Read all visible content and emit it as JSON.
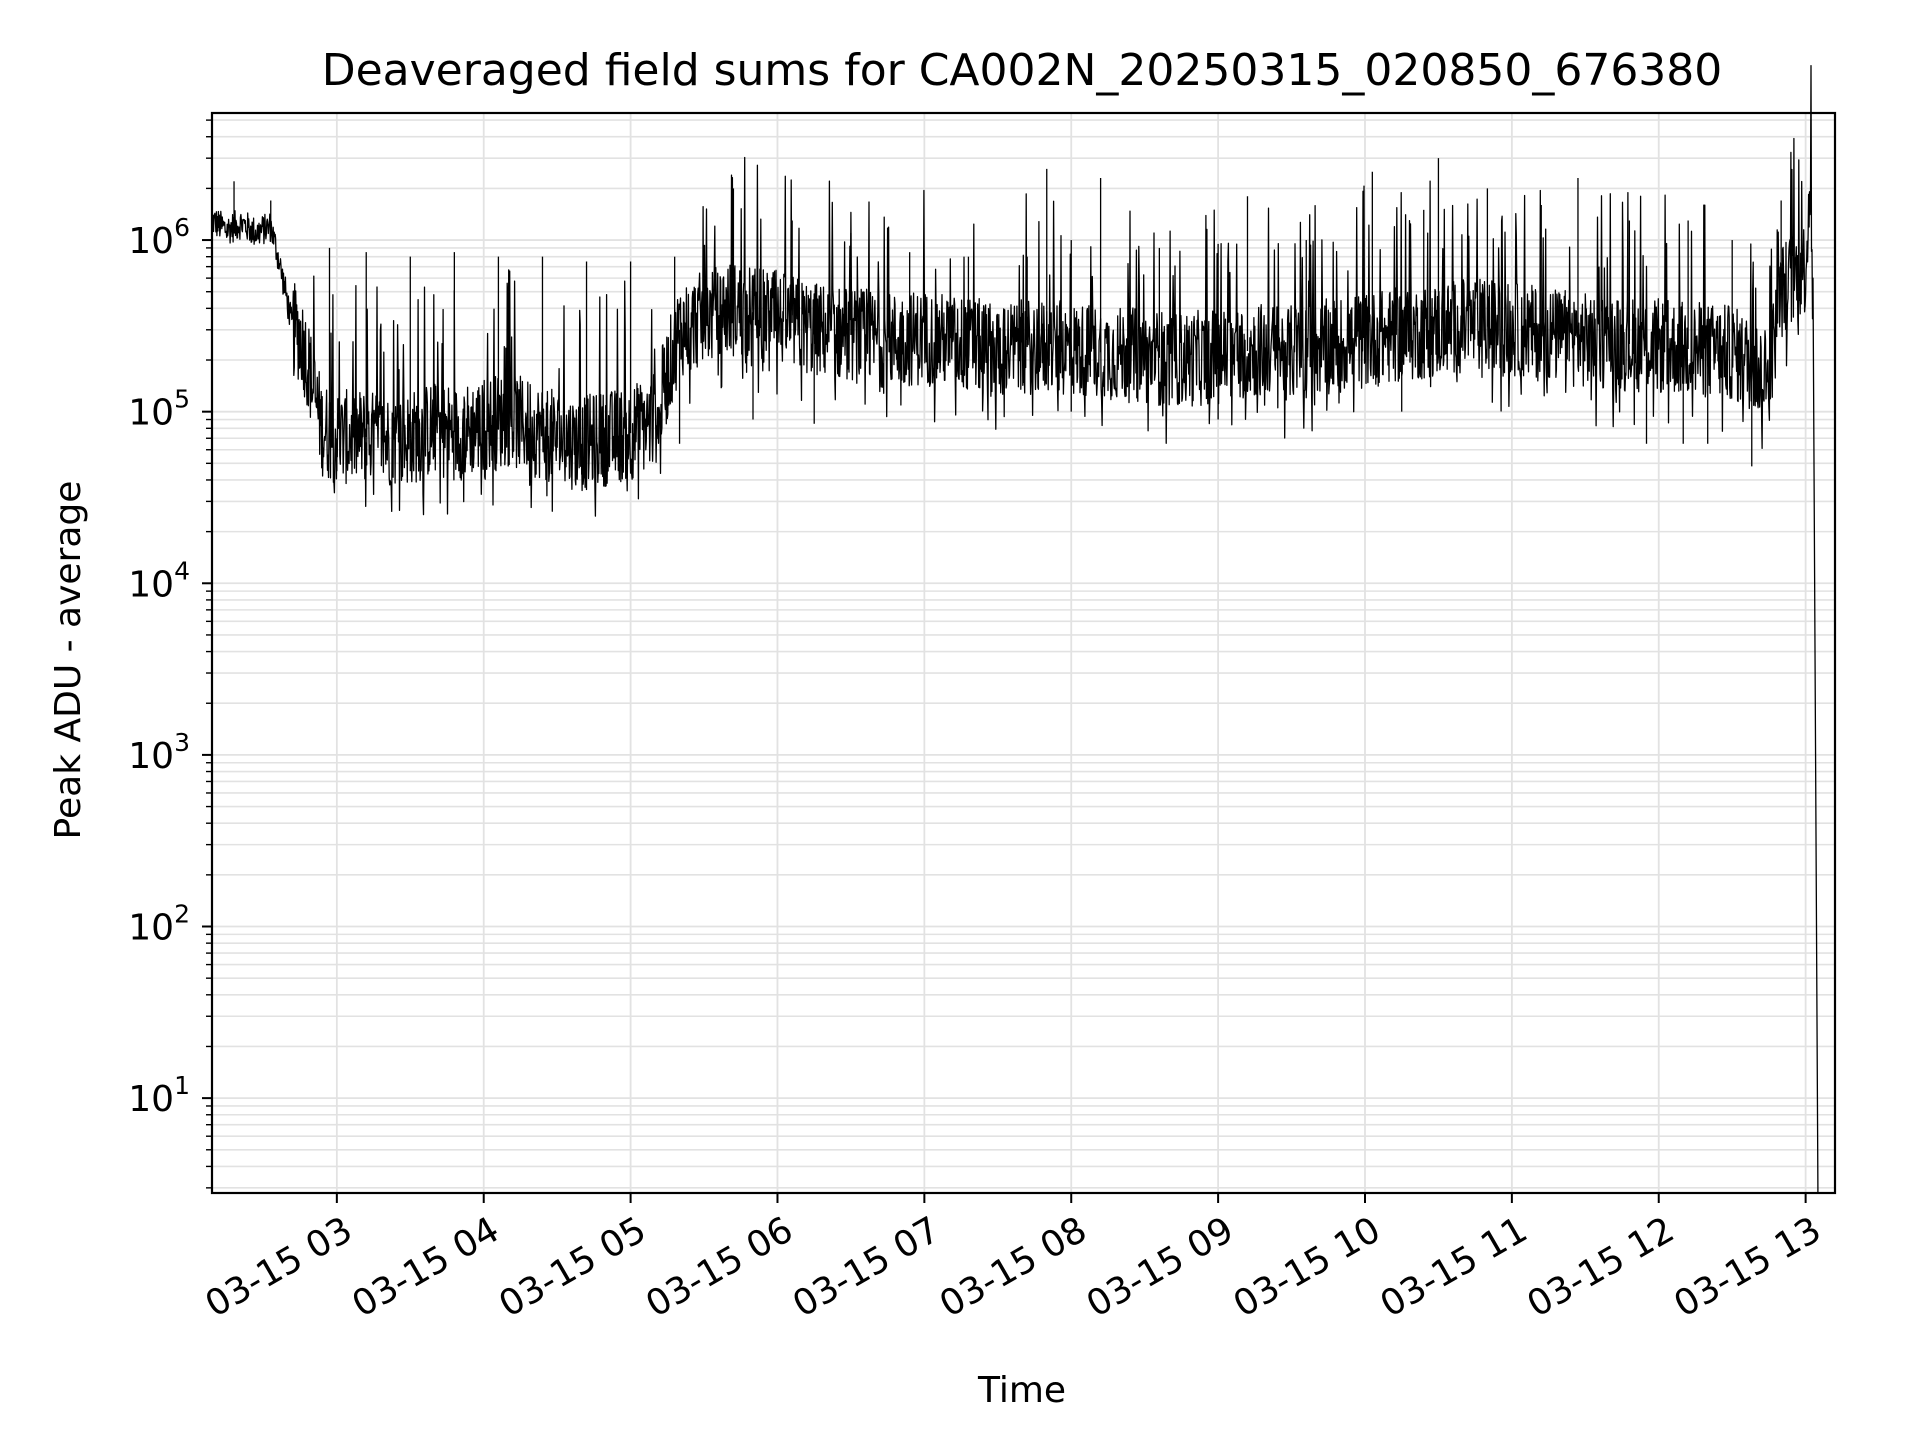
{
  "chart_data": {
    "type": "line",
    "title": "Deaveraged field sums for CA002N_20250315_020850_676380",
    "xlabel": "Time",
    "ylabel": "Peak ADU - average",
    "y_scale": "log",
    "grid": true,
    "legend": "none",
    "line_color": "#000000",
    "grid_color": "#e2e2e2",
    "xlim": [
      "03-15 02:09",
      "03-15 13:12"
    ],
    "ylim": [
      2.8,
      5500000
    ],
    "x_ticks": [
      "03-15 03",
      "03-15 04",
      "03-15 05",
      "03-15 06",
      "03-15 07",
      "03-15 08",
      "03-15 09",
      "03-15 10",
      "03-15 11",
      "03-15 12",
      "03-15 13"
    ],
    "y_ticks": [
      {
        "base": "10",
        "exp": "1",
        "value": 10
      },
      {
        "base": "10",
        "exp": "2",
        "value": 100
      },
      {
        "base": "10",
        "exp": "3",
        "value": 1000
      },
      {
        "base": "10",
        "exp": "4",
        "value": 10000
      },
      {
        "base": "10",
        "exp": "5",
        "value": 100000
      },
      {
        "base": "10",
        "exp": "6",
        "value": 1000000
      }
    ],
    "series": [
      {
        "x": [
          "03-15 02:09",
          "03-15 02:15",
          "03-15 02:21",
          "03-15 02:27",
          "03-15 02:33",
          "03-15 02:36",
          "03-15 02:39",
          "03-15 02:42",
          "03-15 02:45",
          "03-15 02:48",
          "03-15 02:51",
          "03-15 02:54",
          "03-15 02:57",
          "03-15 03:00",
          "03-15 03:10",
          "03-15 03:20",
          "03-15 03:30",
          "03-15 03:40",
          "03-15 03:50",
          "03-15 04:00",
          "03-15 04:10",
          "03-15 04:20",
          "03-15 04:30",
          "03-15 04:40",
          "03-15 04:50",
          "03-15 05:00",
          "03-15 05:10",
          "03-15 05:20",
          "03-15 05:30",
          "03-15 05:40",
          "03-15 05:50",
          "03-15 06:00",
          "03-15 06:15",
          "03-15 06:30",
          "03-15 06:45",
          "03-15 07:00",
          "03-15 07:15",
          "03-15 07:30",
          "03-15 07:45",
          "03-15 08:00",
          "03-15 08:15",
          "03-15 08:30",
          "03-15 08:45",
          "03-15 09:00",
          "03-15 09:15",
          "03-15 09:30",
          "03-15 09:45",
          "03-15 10:00",
          "03-15 10:15",
          "03-15 10:30",
          "03-15 10:45",
          "03-15 11:00",
          "03-15 11:15",
          "03-15 11:30",
          "03-15 11:45",
          "03-15 12:00",
          "03-15 12:15",
          "03-15 12:30",
          "03-15 12:40",
          "03-15 12:45",
          "03-15 12:50",
          "03-15 12:55",
          "03-15 13:00",
          "03-15 13:02",
          "03-15 13:03",
          "03-15 13:05"
        ],
        "y": [
          1300000,
          1150000,
          1250000,
          1100000,
          1200000,
          800000,
          500000,
          300000,
          280000,
          200000,
          120000,
          80000,
          75000,
          70000,
          72000,
          68000,
          70000,
          80000,
          75000,
          85000,
          90000,
          80000,
          70000,
          65000,
          70000,
          75000,
          90000,
          300000,
          350000,
          400000,
          380000,
          350000,
          300000,
          280000,
          260000,
          270000,
          250000,
          230000,
          240000,
          230000,
          220000,
          210000,
          200000,
          210000,
          230000,
          220000,
          240000,
          260000,
          280000,
          300000,
          320000,
          300000,
          280000,
          260000,
          250000,
          240000,
          230000,
          220000,
          180000,
          160000,
          500000,
          600000,
          700000,
          2500000,
          600000,
          3
        ]
      }
    ],
    "spikes": [
      {
        "x": "03-15 02:18",
        "y": 2200000
      },
      {
        "x": "03-15 02:33",
        "y": 1700000
      },
      {
        "x": "03-15 02:57",
        "y": 900000
      },
      {
        "x": "03-15 03:12",
        "y": 850000
      },
      {
        "x": "03-15 03:30",
        "y": 800000
      },
      {
        "x": "03-15 03:48",
        "y": 850000
      },
      {
        "x": "03-15 04:06",
        "y": 800000
      },
      {
        "x": "03-15 04:24",
        "y": 800000
      },
      {
        "x": "03-15 04:42",
        "y": 750000
      },
      {
        "x": "03-15 05:00",
        "y": 750000
      },
      {
        "x": "03-15 05:18",
        "y": 800000
      },
      {
        "x": "03-15 05:42",
        "y": 2000000
      },
      {
        "x": "03-15 06:06",
        "y": 1300000
      },
      {
        "x": "03-15 06:30",
        "y": 1100000
      },
      {
        "x": "03-15 06:54",
        "y": 850000
      },
      {
        "x": "03-15 07:18",
        "y": 800000
      },
      {
        "x": "03-15 07:42",
        "y": 800000
      },
      {
        "x": "03-15 07:50",
        "y": 2600000
      },
      {
        "x": "03-15 08:00",
        "y": 1000000
      },
      {
        "x": "03-15 08:12",
        "y": 2300000
      },
      {
        "x": "03-15 08:36",
        "y": 900000
      },
      {
        "x": "03-15 09:00",
        "y": 950000
      },
      {
        "x": "03-15 09:12",
        "y": 1800000
      },
      {
        "x": "03-15 09:36",
        "y": 1000000
      },
      {
        "x": "03-15 10:03",
        "y": 2500000
      },
      {
        "x": "03-15 10:24",
        "y": 1500000
      },
      {
        "x": "03-15 10:30",
        "y": 3000000
      },
      {
        "x": "03-15 10:50",
        "y": 2000000
      },
      {
        "x": "03-15 11:12",
        "y": 1600000
      },
      {
        "x": "03-15 11:27",
        "y": 2300000
      },
      {
        "x": "03-15 11:48",
        "y": 1300000
      },
      {
        "x": "03-15 12:12",
        "y": 1300000
      },
      {
        "x": "03-15 12:30",
        "y": 1000000
      },
      {
        "x": "03-15 12:50",
        "y": 1700000
      }
    ],
    "dips": [
      {
        "x": "03-15 02:45",
        "y": 180000
      },
      {
        "x": "03-15 03:00",
        "y": 45000
      },
      {
        "x": "03-15 03:30",
        "y": 45000
      },
      {
        "x": "03-15 04:05",
        "y": 45000
      },
      {
        "x": "03-15 04:40",
        "y": 43000
      },
      {
        "x": "03-15 04:55",
        "y": 45000
      },
      {
        "x": "03-15 05:20",
        "y": 65000
      },
      {
        "x": "03-15 05:50",
        "y": 90000
      },
      {
        "x": "03-15 06:15",
        "y": 85000
      },
      {
        "x": "03-15 08:00",
        "y": 100000
      },
      {
        "x": "03-15 09:00",
        "y": 90000
      },
      {
        "x": "03-15 10:15",
        "y": 100000
      },
      {
        "x": "03-15 11:55",
        "y": 65000
      },
      {
        "x": "03-15 12:10",
        "y": 65000
      },
      {
        "x": "03-15 12:20",
        "y": 65000
      },
      {
        "x": "03-15 12:38",
        "y": 48000
      }
    ]
  }
}
